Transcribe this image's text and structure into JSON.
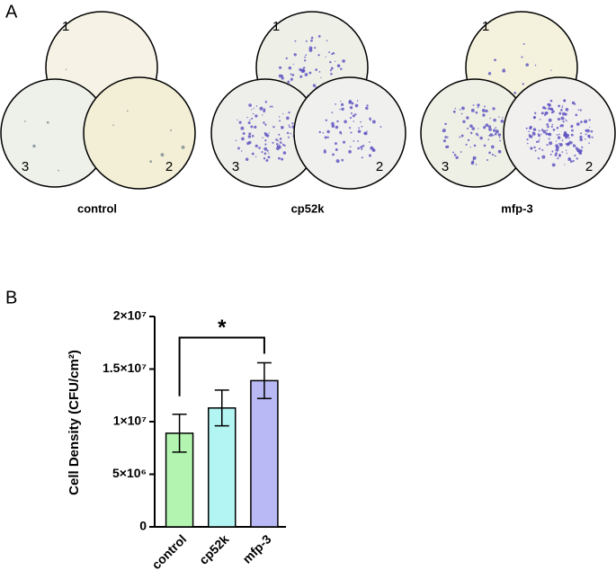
{
  "panel_a": {
    "label": "A",
    "groups": [
      {
        "name": "control",
        "circles": [
          "1",
          "3",
          "2"
        ]
      },
      {
        "name": "cp52k",
        "circles": [
          "1",
          "3",
          "2"
        ]
      },
      {
        "name": "mfp-3",
        "circles": [
          "1",
          "3",
          "2"
        ]
      }
    ]
  },
  "chart_data": {
    "type": "bar",
    "panel_label": "B",
    "y_label": "Cell Density (CFU/cm²)",
    "categories": [
      "control",
      "cp52k",
      "mfp-3"
    ],
    "values": [
      8900000,
      11300000,
      13900000
    ],
    "errors": [
      1800000,
      1700000,
      1700000
    ],
    "colors": [
      "#b3f5b0",
      "#b3f5f3",
      "#b9b9f6"
    ],
    "ylim": [
      0,
      20000000
    ],
    "yticks": [
      0,
      {
        "value": 5000000,
        "label": "5×10⁶"
      },
      {
        "value": 10000000,
        "label": "1×10⁷"
      },
      {
        "value": 15000000,
        "label": "1.5×10⁷"
      },
      {
        "value": 20000000,
        "label": "2×10⁷"
      }
    ],
    "significance": {
      "label": "*",
      "between": [
        0,
        2
      ]
    }
  }
}
